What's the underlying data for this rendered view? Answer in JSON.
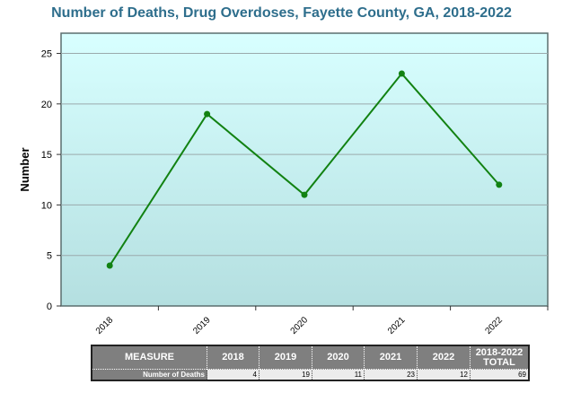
{
  "chart_data": {
    "type": "line",
    "title": "Number of Deaths, Drug Overdoses, Fayette County, GA, 2018-2022",
    "xlabel": "",
    "ylabel": "Number",
    "categories": [
      "2018",
      "2019",
      "2020",
      "2021",
      "2022"
    ],
    "series": [
      {
        "name": "Number of Deaths",
        "values": [
          4,
          19,
          11,
          23,
          12
        ]
      }
    ],
    "ylim": [
      0,
      27
    ],
    "yticks": [
      0,
      5,
      10,
      15,
      20,
      25
    ],
    "grid": true,
    "colors": {
      "line": "#128212",
      "plot_top": "#d8ffff",
      "plot_bottom": "#b4dfe0"
    }
  },
  "table": {
    "headers": [
      "MEASURE",
      "2018",
      "2019",
      "2020",
      "2021",
      "2022",
      "2018-2022 TOTAL"
    ],
    "row_label": "Number of Deaths",
    "values": [
      "4",
      "19",
      "11",
      "23",
      "12",
      "69"
    ]
  }
}
